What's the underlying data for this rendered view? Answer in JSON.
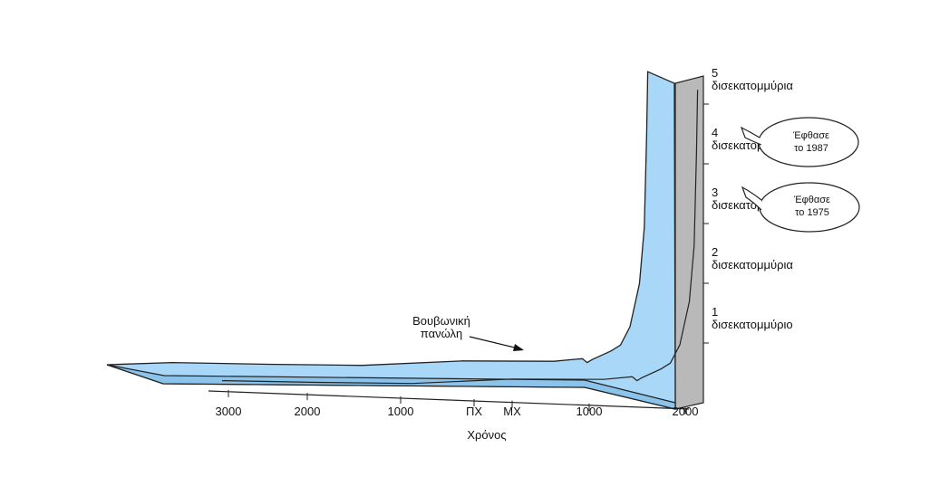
{
  "chart_data": {
    "type": "area",
    "x_axis_label": "Χρόνος",
    "x_ticks": [
      "3000",
      "2000",
      "1000",
      "ΠΧ",
      "ΜΧ",
      "1000",
      "2000"
    ],
    "y_ticks": [
      {
        "value": 1,
        "number": "1",
        "unit": "δισεκατομμύριο"
      },
      {
        "value": 2,
        "number": "2",
        "unit": "δισεκατομμύρια"
      },
      {
        "value": 3,
        "number": "3",
        "unit": "δισεκατομμύρια"
      },
      {
        "value": 4,
        "number": "4",
        "unit": "δισεκατομμύρια"
      },
      {
        "value": 5,
        "number": "5",
        "unit": "δισεκατομμύρια"
      }
    ],
    "ylim": [
      0,
      5.4
    ],
    "series": [
      {
        "x": [
          -3000,
          -2000,
          -1000,
          0,
          1000,
          1300,
          1350,
          1400,
          1600,
          1700,
          1800,
          1900,
          1950,
          1975,
          1987
        ],
        "y": [
          0.05,
          0.08,
          0.12,
          0.25,
          0.3,
          0.36,
          0.3,
          0.35,
          0.5,
          0.6,
          0.9,
          1.6,
          2.5,
          4.0,
          5.0
        ]
      }
    ],
    "annotations": [
      {
        "text_lines": [
          "Βουβωνική",
          "πανώλη"
        ],
        "x": 1350
      },
      {
        "text_lines": [
          "Έφθασε",
          "το 1975"
        ],
        "y": 4
      },
      {
        "text_lines": [
          "Έφθασε",
          "το 1987"
        ],
        "y": 5
      }
    ],
    "colors": {
      "fill": "#a9d7f7",
      "fill_dark": "#7fb6e0",
      "stroke": "#1a1a1a",
      "wall": "#b7b7b7"
    }
  }
}
